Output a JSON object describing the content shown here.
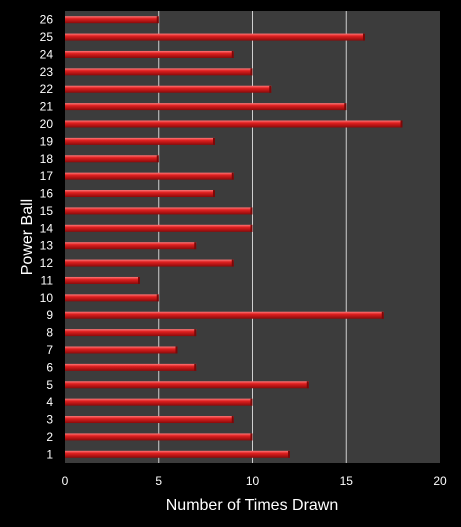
{
  "chart_data": {
    "type": "bar",
    "orientation": "horizontal",
    "xlabel": "Number of Times Drawn",
    "ylabel": "Power Ball",
    "xlim": [
      0,
      20
    ],
    "xticks": [
      "0",
      "5",
      "10",
      "15",
      "20"
    ],
    "grid": "vertical",
    "legend": "none",
    "categories": [
      "1",
      "2",
      "3",
      "4",
      "5",
      "6",
      "7",
      "8",
      "9",
      "10",
      "11",
      "12",
      "13",
      "14",
      "15",
      "16",
      "17",
      "18",
      "19",
      "20",
      "21",
      "22",
      "23",
      "24",
      "25",
      "26"
    ],
    "values": [
      12,
      10,
      9,
      10,
      13,
      7,
      6,
      7,
      17,
      5,
      4,
      9,
      7,
      10,
      10,
      8,
      9,
      5,
      8,
      18,
      15,
      11,
      10,
      9,
      16,
      5
    ],
    "colors": {
      "background": "#000000",
      "plot_area": "#3c3c3c",
      "bar": "#d41a1a",
      "bar_highlight": "#ff6b6b",
      "grid": "#cfcfcf",
      "text": "#ffffff"
    }
  }
}
